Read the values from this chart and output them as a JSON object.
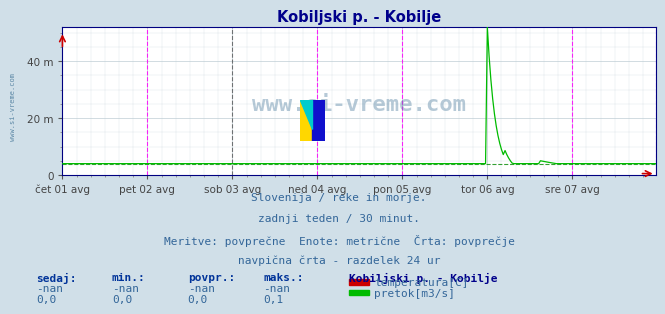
{
  "title": "Kobiljski p. - Kobilje",
  "title_color": "#00008B",
  "bg_color": "#d0dfe8",
  "plot_bg_color": "#ffffff",
  "grid_color": "#b8c8d0",
  "x_labels": [
    "čet 01 avg",
    "pet 02 avg",
    "sob 03 avg",
    "ned 04 avg",
    "pon 05 avg",
    "tor 06 avg",
    "sre 07 avg"
  ],
  "y_ticks": [
    0,
    20,
    40
  ],
  "y_labels": [
    "0",
    "20 m",
    "40 m"
  ],
  "y_max": 52,
  "n_points": 336,
  "flow_base": 4.0,
  "flow_peak_index": 240,
  "flow_peak_value": 52.0,
  "flow_color": "#00bb00",
  "temp_color": "#cc0000",
  "vline_magenta": "#ff00ff",
  "vline_black": "#444444",
  "dashed_line_value": 4.0,
  "dashed_line_color": "#008800",
  "watermark_text": "www.si-vreme.com",
  "watermark_color": "#4a7a9b",
  "watermark_alpha": 0.4,
  "sidebar_text": "www.si-vreme.com",
  "sidebar_color": "#4a7a9b",
  "footer_lines": [
    "Slovenija / reke in morje.",
    "zadnji teden / 30 minut.",
    "Meritve: povprečne  Enote: metrične  Črta: povprečje",
    "navpična črta - razdelek 24 ur"
  ],
  "footer_color": "#336699",
  "footer_fontsize": 8,
  "legend_title": "Kobiljski p. - Kobilje",
  "legend_title_color": "#00008B",
  "legend_items": [
    {
      "label": "temperatura[C]",
      "color": "#cc0000"
    },
    {
      "label": "pretok[m3/s]",
      "color": "#00bb00"
    }
  ],
  "stats_headers": [
    "sedaj:",
    "min.:",
    "povpr.:",
    "maks.:"
  ],
  "stats_temp": [
    "-nan",
    "-nan",
    "-nan",
    "-nan"
  ],
  "stats_flow": [
    "0,0",
    "0,0",
    "0,0",
    "0,1"
  ],
  "stats_color": "#336699",
  "stats_bold_color": "#003399",
  "x_axis_color": "#000080",
  "last_point_color": "#cc0000",
  "magenta_vline_positions": [
    48,
    144,
    192,
    288,
    335
  ],
  "black_vline_positions": [
    96
  ]
}
